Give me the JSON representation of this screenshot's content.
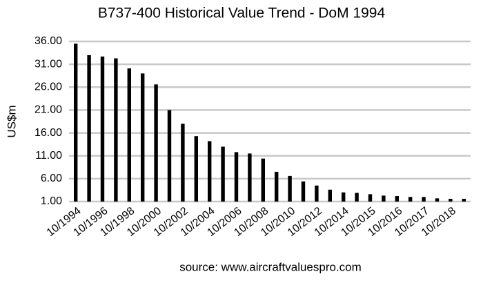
{
  "chart_data": {
    "type": "bar",
    "title": "B737-400 Historical Value Trend - DoM 1994",
    "y_label": "US$m",
    "source": "source: www.aircraftvaluespro.com",
    "categories": [
      "10/1994",
      null,
      "10/1996",
      null,
      "10/1998",
      null,
      "10/2000",
      null,
      "10/2002",
      null,
      "10/2004",
      null,
      "10/2006",
      null,
      "10/2008",
      null,
      "10/2010",
      null,
      "10/2012",
      null,
      "10/2014",
      null,
      "10/2015",
      null,
      "10/2016",
      null,
      "10/2017",
      null,
      "10/2018",
      null
    ],
    "values": [
      35.5,
      33.0,
      32.7,
      32.3,
      30.1,
      29.0,
      26.6,
      21.0,
      18.0,
      15.3,
      14.2,
      13.0,
      11.8,
      11.5,
      10.4,
      7.5,
      6.6,
      5.4,
      4.5,
      3.6,
      3.0,
      2.9,
      2.6,
      2.3,
      2.2,
      2.0,
      2.0,
      1.7,
      1.6,
      1.6
    ],
    "color": "#000000",
    "ylim": [
      1,
      36
    ],
    "yticks": [
      {
        "value": 1,
        "label": "1.00"
      },
      {
        "value": 6,
        "label": "6.00"
      },
      {
        "value": 11,
        "label": "11.00"
      },
      {
        "value": 16,
        "label": "16.00"
      },
      {
        "value": 21,
        "label": "21.00"
      },
      {
        "value": 26,
        "label": "26.00"
      },
      {
        "value": 31,
        "label": "31.00"
      },
      {
        "value": 36,
        "label": "36.00"
      }
    ],
    "grid": true
  }
}
